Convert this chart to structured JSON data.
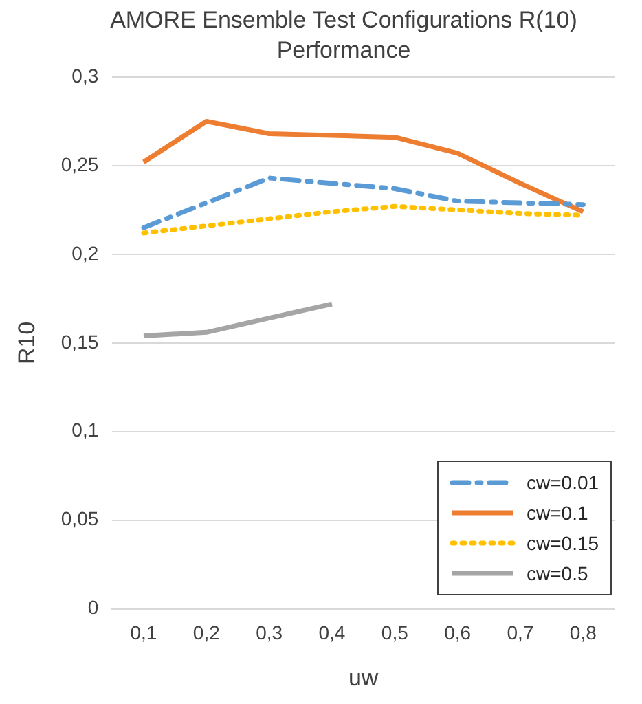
{
  "chart_data": {
    "type": "line",
    "title": "AMORE Ensemble Test Configurations R(10) Performance",
    "xlabel": "uw",
    "ylabel": "R10",
    "categories": [
      "0,1",
      "0,2",
      "0,3",
      "0,4",
      "0,5",
      "0,6",
      "0,7",
      "0,8"
    ],
    "series": [
      {
        "name": "cw=0.01",
        "color": "#5b9bd5",
        "line_style": "dashed",
        "values": [
          0.215,
          0.229,
          0.243,
          0.24,
          0.237,
          0.23,
          0.229,
          0.228
        ]
      },
      {
        "name": "cw=0.1",
        "color": "#ed7d31",
        "line_style": "solid",
        "values": [
          0.252,
          0.275,
          0.268,
          0.267,
          0.266,
          0.257,
          0.24,
          0.224
        ]
      },
      {
        "name": "cw=0.15",
        "color": "#ffc000",
        "line_style": "dotted",
        "values": [
          0.212,
          0.216,
          0.22,
          0.224,
          0.227,
          0.225,
          0.223,
          0.222
        ]
      },
      {
        "name": "cw=0.5",
        "color": "#a5a5a5",
        "line_style": "solid",
        "values": [
          0.154,
          0.156,
          0.164,
          0.172,
          null,
          null,
          null,
          null
        ]
      }
    ],
    "ylim": [
      0,
      0.3
    ],
    "yticks": [
      {
        "value": 0,
        "label": "0"
      },
      {
        "value": 0.05,
        "label": "0,05"
      },
      {
        "value": 0.1,
        "label": "0,1"
      },
      {
        "value": 0.15,
        "label": "0,15"
      },
      {
        "value": 0.2,
        "label": "0,2"
      },
      {
        "value": 0.25,
        "label": "0,25"
      },
      {
        "value": 0.3,
        "label": "0,3"
      }
    ],
    "grid": "y",
    "legend": "bottom right",
    "marker": "none"
  }
}
